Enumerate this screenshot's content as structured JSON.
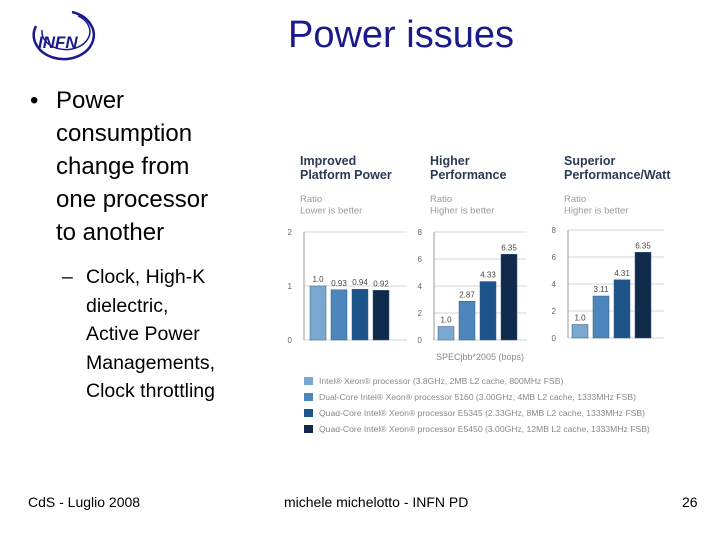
{
  "logo": {
    "text": "INFN"
  },
  "title": "Power issues",
  "bullets": {
    "main": "Power\nconsumption\nchange from\none processor\nto another",
    "sub": " Clock, High-K\ndielectric,\nActive Power\nManagements,\nClock throttling"
  },
  "footer": {
    "left": "CdS - Luglio 2008",
    "center": "michele michelotto - INFN PD",
    "page": "26"
  },
  "colors": {
    "title": "#1a1a8c",
    "chart_title": "#2b3a55",
    "series": [
      "#7ba7d3",
      "#4c86bd",
      "#1d5489",
      "#0f2a4a"
    ]
  },
  "chart_data": [
    {
      "type": "bar",
      "title": "Improved\nPlatform Power",
      "subtitle": "Ratio\nLower is better",
      "categories": [
        "Intel Xeon 3.8GHz",
        "Xeon 5160",
        "Xeon E5345",
        "Xeon E5450"
      ],
      "values": [
        1.0,
        0.93,
        0.94,
        0.92
      ],
      "labels": [
        "1.0",
        "0.93",
        "0.94",
        "0.92"
      ],
      "ylim": [
        0,
        2
      ],
      "yticks": [
        "0",
        "1",
        "2"
      ],
      "xlabel": ""
    },
    {
      "type": "bar",
      "title": "Higher\nPerformance",
      "subtitle": "Ratio\nHigher is better",
      "categories": [
        "Intel Xeon 3.8GHz",
        "Xeon 5160",
        "Xeon E5345",
        "Xeon E5450"
      ],
      "values": [
        1.0,
        2.87,
        4.33,
        6.35
      ],
      "labels": [
        "1.0",
        "2.87",
        "4.33",
        "6.35"
      ],
      "ylim": [
        0,
        8
      ],
      "yticks": [
        "0",
        "2",
        "4",
        "6",
        "8"
      ],
      "xlabel": "SPECjbb*2005 (bops)"
    },
    {
      "type": "bar",
      "title": "Superior\nPerformance/Watt",
      "subtitle": "Ratio\nHigher is better",
      "categories": [
        "Intel Xeon 3.8GHz",
        "Xeon 5160",
        "Xeon E5345",
        "Xeon E5450"
      ],
      "values": [
        1.0,
        3.11,
        4.31,
        6.35
      ],
      "labels": [
        "1.0",
        "3.11",
        "4.31",
        "6.35"
      ],
      "ylim": [
        0,
        8
      ],
      "yticks": [
        "0",
        "2",
        "4",
        "6",
        "8"
      ],
      "xlabel": ""
    }
  ],
  "legend": [
    "Intel® Xeon® processor (3.8GHz, 2MB L2 cache, 800MHz FSB)",
    "Dual-Core Intel® Xeon® processor 5160 (3.00GHz, 4MB L2 cache, 1333MHz FSB)",
    "Quad-Core Intel® Xeon® processor E5345 (2.33GHz, 8MB L2 cache, 1333MHz FSB)",
    "Quad-Core Intel® Xeon® processor E5450 (3.00GHz, 12MB L2 cache, 1333MHz FSB)"
  ]
}
